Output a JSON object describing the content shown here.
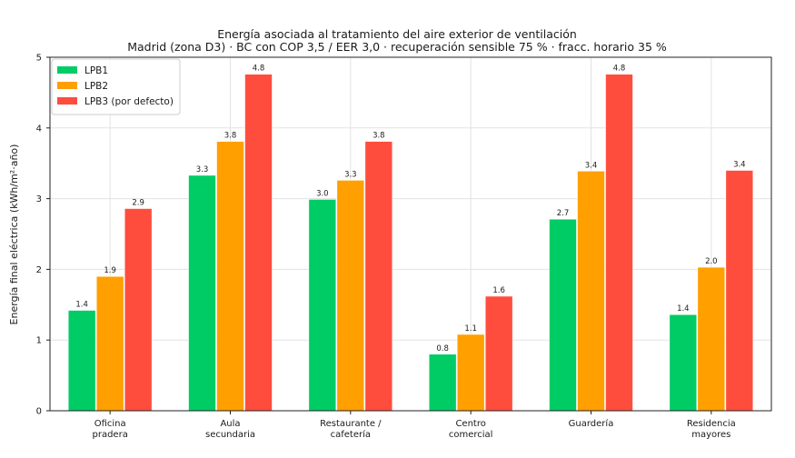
{
  "chart_data": {
    "type": "bar",
    "title": "Energía asociada al tratamiento del aire exterior de ventilación",
    "subtitle": "Madrid (zona D3) · BC con COP 3,5 / EER 3,0 · recuperación sensible 75 % · fracc. horario 35 %",
    "xlabel": "",
    "ylabel": "Energía final eléctrica (kWh/m²·año)",
    "ylim": [
      0,
      5
    ],
    "yticks": [
      "0",
      "1",
      "2",
      "3",
      "4",
      "5"
    ],
    "grid": true,
    "legend_position": "top-left",
    "categories": [
      [
        "Oficina",
        "pradera"
      ],
      [
        "Aula",
        "secundaria"
      ],
      [
        "Restaurante /",
        "cafetería"
      ],
      [
        "Centro",
        "comercial"
      ],
      [
        "Guardería"
      ],
      [
        "Residencia",
        "mayores"
      ]
    ],
    "series": [
      {
        "name": "LPB1",
        "color": "#00cc66",
        "values": [
          1.42,
          3.33,
          2.99,
          0.8,
          2.71,
          1.36
        ],
        "labels": [
          "1.4",
          "3.3",
          "3.0",
          "0.8",
          "2.7",
          "1.4"
        ]
      },
      {
        "name": "LPB2",
        "color": "#ff9f00",
        "values": [
          1.9,
          3.81,
          3.26,
          1.08,
          3.39,
          2.03
        ],
        "labels": [
          "1.9",
          "3.8",
          "3.3",
          "1.1",
          "3.4",
          "2.0"
        ]
      },
      {
        "name": "LPB3 (por defecto)",
        "color": "#ff4d3d",
        "values": [
          2.86,
          4.76,
          3.81,
          1.62,
          4.76,
          3.4
        ],
        "labels": [
          "2.9",
          "4.8",
          "3.8",
          "1.6",
          "4.8",
          "3.4"
        ]
      }
    ]
  }
}
